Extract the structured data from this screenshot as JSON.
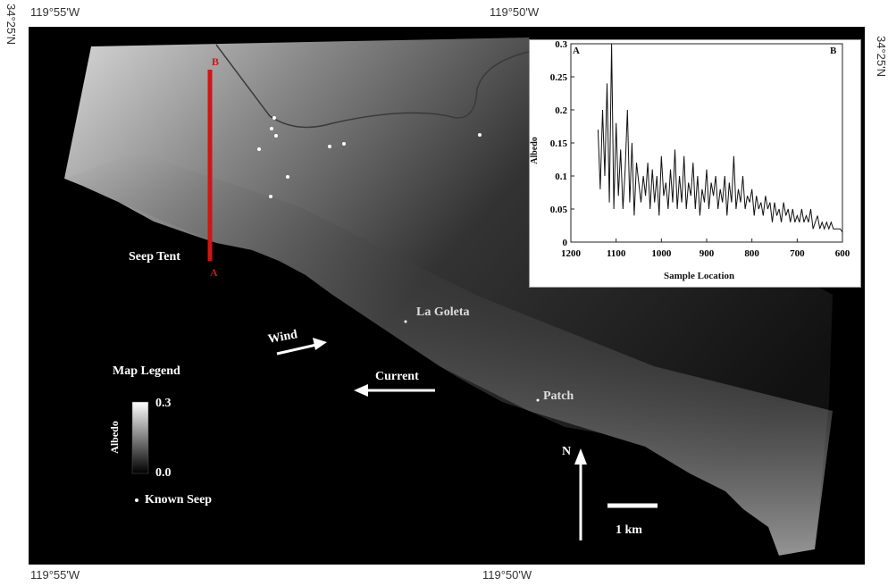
{
  "coords": {
    "top_left": "119°55'W",
    "top_center": "119°50'W",
    "bottom_left": "119°55'W",
    "bottom_center": "119°50'W",
    "left_lat": "34°25'N",
    "right_lat": "34°25'N"
  },
  "map": {
    "seep_tent": "Seep Tent",
    "la_goleta": "La Goleta",
    "patch": "Patch",
    "wind": "Wind",
    "current": "Current",
    "north": "N",
    "scale": "1 km",
    "transect_start": "A",
    "transect_end": "B"
  },
  "legend": {
    "title": "Map Legend",
    "max": "0.3",
    "min": "0.0",
    "axis": "Albedo",
    "seep_label": "Known Seep"
  },
  "colors": {
    "transect": "#d01515",
    "background": "#000000"
  },
  "chart_data": {
    "type": "line",
    "xlabel": "Sample Location",
    "ylabel": "Albedo",
    "corner_left": "A",
    "corner_right": "B",
    "xlim": [
      1200,
      600
    ],
    "ylim": [
      0,
      0.3
    ],
    "xticks": [
      "1200",
      "1100",
      "1000",
      "900",
      "800",
      "700",
      "600"
    ],
    "yticks": [
      "0",
      "0.05",
      "0.1",
      "0.15",
      "0.2",
      "0.25",
      "0.3"
    ],
    "series": [
      {
        "x": [
          1140,
          1135,
          1130,
          1125,
          1120,
          1115,
          1110,
          1105,
          1100,
          1095,
          1090,
          1085,
          1080,
          1075,
          1070,
          1065,
          1060,
          1055,
          1050,
          1045,
          1040,
          1035,
          1030,
          1025,
          1020,
          1015,
          1010,
          1005,
          1000,
          995,
          990,
          985,
          980,
          975,
          970,
          965,
          960,
          955,
          950,
          945,
          940,
          935,
          930,
          925,
          920,
          915,
          910,
          905,
          900,
          895,
          890,
          885,
          880,
          875,
          870,
          865,
          860,
          855,
          850,
          845,
          840,
          835,
          830,
          825,
          820,
          815,
          810,
          805,
          800,
          795,
          790,
          785,
          780,
          775,
          770,
          765,
          760,
          755,
          750,
          745,
          740,
          735,
          730,
          725,
          720,
          715,
          710,
          705,
          700,
          695,
          690,
          685,
          680,
          675,
          670,
          665,
          660,
          655,
          650,
          645,
          640,
          635,
          630,
          625,
          620,
          615,
          610,
          605,
          600
        ],
        "y": [
          0.17,
          0.08,
          0.2,
          0.1,
          0.24,
          0.06,
          0.3,
          0.05,
          0.18,
          0.07,
          0.14,
          0.05,
          0.11,
          0.2,
          0.06,
          0.15,
          0.04,
          0.12,
          0.09,
          0.06,
          0.1,
          0.07,
          0.12,
          0.05,
          0.11,
          0.06,
          0.1,
          0.04,
          0.13,
          0.07,
          0.09,
          0.05,
          0.11,
          0.06,
          0.14,
          0.05,
          0.1,
          0.06,
          0.13,
          0.05,
          0.09,
          0.07,
          0.12,
          0.05,
          0.1,
          0.04,
          0.08,
          0.06,
          0.11,
          0.05,
          0.09,
          0.07,
          0.1,
          0.05,
          0.08,
          0.06,
          0.1,
          0.04,
          0.09,
          0.06,
          0.13,
          0.05,
          0.08,
          0.06,
          0.1,
          0.05,
          0.07,
          0.06,
          0.08,
          0.04,
          0.07,
          0.05,
          0.06,
          0.04,
          0.07,
          0.05,
          0.06,
          0.03,
          0.06,
          0.04,
          0.05,
          0.03,
          0.06,
          0.04,
          0.05,
          0.03,
          0.05,
          0.03,
          0.04,
          0.03,
          0.05,
          0.03,
          0.04,
          0.03,
          0.05,
          0.02,
          0.03,
          0.04,
          0.02,
          0.03,
          0.02,
          0.03,
          0.02,
          0.03,
          0.02,
          0.02,
          0.02,
          0.02,
          0.015
        ]
      }
    ]
  }
}
